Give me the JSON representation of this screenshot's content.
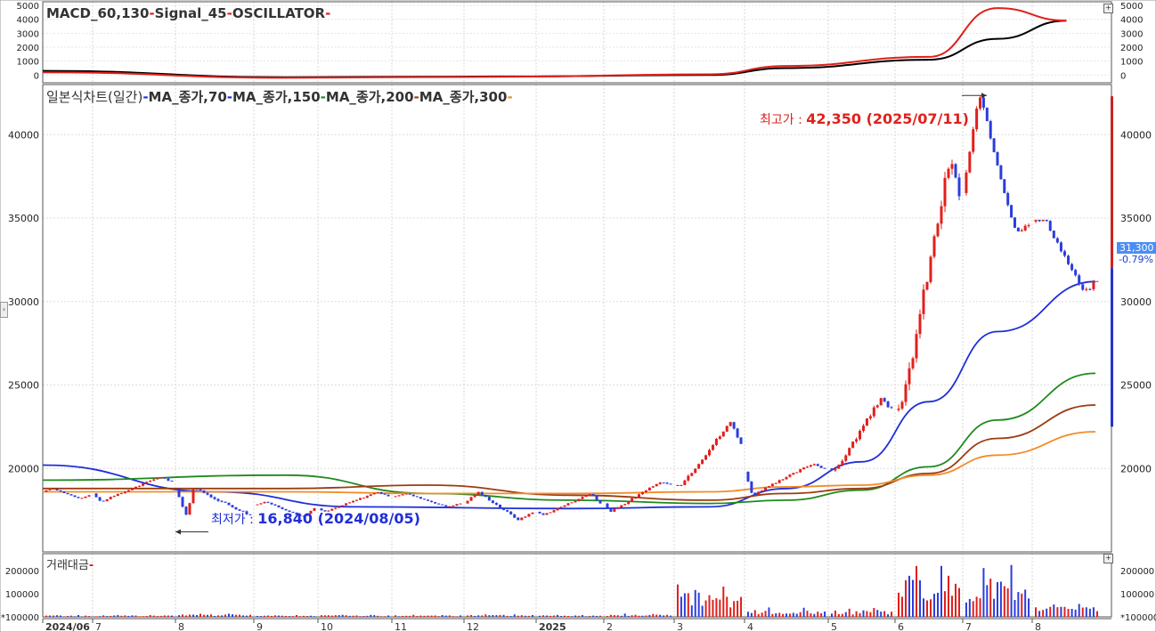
{
  "colors": {
    "macd": "#000000",
    "signal": "#e0201b",
    "ma70": "#1f2fd8",
    "ma150": "#1e8a1e",
    "ma200": "#9b3d12",
    "ma300": "#f28c28",
    "up": "#e0201b",
    "down": "#2b3ddc"
  },
  "macd_panel": {
    "legend": {
      "macd": "MACD_60,130",
      "signal": "Signal_45",
      "osc": "OSCILLATOR",
      "dash": "-"
    },
    "y_ticks": [
      "5000",
      "4000",
      "3000",
      "2000",
      "1000",
      "0"
    ]
  },
  "price_panel": {
    "legend": {
      "title": "일본식차트(일간)",
      "ma70": "MA_종가,70",
      "ma150": "MA_종가,150",
      "ma200": "MA_종가,200",
      "ma300": "MA_종가,300",
      "dash": "-"
    },
    "y_ticks": [
      "40000",
      "35000",
      "30000",
      "25000",
      "20000"
    ],
    "current_price": "31,300",
    "current_change": "-0.79%",
    "high": {
      "label": "최고가 : ",
      "value": "42,350 (2025/07/11)"
    },
    "low": {
      "label": "최저가 : ",
      "value": "16,840 (2024/08/05)"
    }
  },
  "volume_panel": {
    "legend": "거래대금",
    "dash": "-",
    "y_ticks": [
      "200000",
      "100000",
      "*100000"
    ]
  },
  "x_axis": {
    "labels": [
      "2024/06",
      "7",
      "8",
      "9",
      "10",
      "11",
      "12",
      "2025",
      "2",
      "3",
      "4",
      "5",
      "6",
      "7",
      "8"
    ]
  },
  "chart_data": [
    {
      "type": "line",
      "name_panel": "MACD",
      "ylim": [
        0,
        5000
      ],
      "series": [
        {
          "name": "MACD_60,130",
          "x": [
            "2024/06",
            "2024/09",
            "2024/12",
            "2025/03",
            "2025/04",
            "2025/06",
            "2025/07",
            "2025/08"
          ],
          "values": [
            300,
            -150,
            -100,
            0,
            500,
            1100,
            2600,
            3900
          ]
        },
        {
          "name": "Signal_45",
          "x": [
            "2024/06",
            "2024/09",
            "2024/12",
            "2025/03",
            "2025/04",
            "2025/06",
            "2025/07",
            "2025/08"
          ],
          "values": [
            200,
            -200,
            -120,
            50,
            650,
            1300,
            4800,
            3900
          ]
        }
      ]
    },
    {
      "type": "candlestick",
      "name_panel": "price",
      "ylim": [
        15000,
        43000
      ],
      "ohlc": [
        [
          "2024/06",
          18600,
          18800,
          18200,
          18400
        ],
        [
          "2024/07",
          18500,
          19500,
          18000,
          19200
        ],
        [
          "2024/08",
          18800,
          18900,
          16840,
          17200
        ],
        [
          "2024/09",
          17800,
          18000,
          17100,
          17600
        ],
        [
          "2024/10",
          17600,
          18600,
          17400,
          18300
        ],
        [
          "2024/11",
          18300,
          18500,
          17700,
          17900
        ],
        [
          "2024/12",
          17900,
          18600,
          16900,
          17400
        ],
        [
          "2025/01",
          17400,
          18500,
          17200,
          17900
        ],
        [
          "2025/02",
          17900,
          19200,
          17400,
          19000
        ],
        [
          "2025/03",
          19000,
          22800,
          19000,
          21500
        ],
        [
          "2025/04",
          19800,
          20300,
          18400,
          20000
        ],
        [
          "2025/05",
          20000,
          24300,
          19800,
          23500
        ],
        [
          "2025/06",
          23500,
          38500,
          23400,
          36500
        ],
        [
          "2025/07",
          36500,
          42350,
          34200,
          34800
        ],
        [
          "2025/08",
          34800,
          34900,
          30500,
          31300
        ]
      ],
      "series": [
        {
          "name": "MA_종가,70",
          "x": [
            "2024/06",
            "2024/08",
            "2024/10",
            "2025/01",
            "2025/03",
            "2025/04",
            "2025/05",
            "2025/06",
            "2025/07",
            "2025/08"
          ],
          "values": [
            20200,
            18600,
            17700,
            17600,
            17700,
            18800,
            20400,
            24000,
            28200,
            31200
          ]
        },
        {
          "name": "MA_종가,150",
          "x": [
            "2024/06",
            "2024/09",
            "2024/11",
            "2025/01",
            "2025/03",
            "2025/04",
            "2025/05",
            "2025/06",
            "2025/07",
            "2025/08"
          ],
          "values": [
            19300,
            19600,
            18500,
            18100,
            17900,
            18100,
            18700,
            20100,
            22900,
            25700
          ]
        },
        {
          "name": "MA_종가,200",
          "x": [
            "2024/06",
            "2024/09",
            "2024/11",
            "2025/01",
            "2025/03",
            "2025/04",
            "2025/05",
            "2025/06",
            "2025/07",
            "2025/08"
          ],
          "values": [
            18800,
            18800,
            19000,
            18400,
            18100,
            18500,
            18800,
            19700,
            21800,
            23800
          ]
        },
        {
          "name": "MA_종가,300",
          "x": [
            "2024/06",
            "2024/09",
            "2024/11",
            "2025/01",
            "2025/03",
            "2025/04",
            "2025/05",
            "2025/06",
            "2025/07",
            "2025/08"
          ],
          "values": [
            18600,
            18600,
            18500,
            18500,
            18600,
            18900,
            19000,
            19600,
            20800,
            22200
          ]
        }
      ]
    },
    {
      "type": "bar",
      "name_panel": "거래대금",
      "ylim": [
        0,
        250000
      ],
      "series": [
        {
          "name": "거래대금",
          "x": [
            "2024/06",
            "2024/07",
            "2024/08",
            "2024/09",
            "2024/10",
            "2024/11",
            "2024/12",
            "2025/01",
            "2025/02",
            "2025/03",
            "2025/04",
            "2025/05",
            "2025/06",
            "2025/07",
            "2025/08"
          ],
          "values": [
            8000,
            9000,
            15000,
            8000,
            10000,
            9000,
            12000,
            9000,
            15000,
            140000,
            45000,
            40000,
            240000,
            230000,
            60000
          ]
        }
      ]
    }
  ]
}
